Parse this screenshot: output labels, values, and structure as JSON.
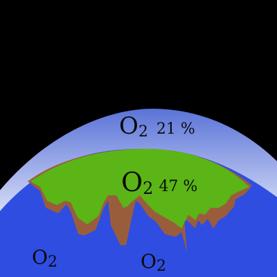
{
  "diagram": {
    "labels": {
      "atmosphere": {
        "formula": "O",
        "subscript": "2",
        "percent": "21 %"
      },
      "crust": {
        "formula": "O",
        "subscript": "2",
        "percent": "47 %"
      },
      "ocean_left": {
        "formula": "O",
        "subscript": "2"
      },
      "ocean_right": {
        "formula": "O",
        "subscript": "2"
      }
    },
    "colors": {
      "space": "#000000",
      "atmosphere_top": "#5a73d8",
      "atmosphere_bottom": "#e9edfb",
      "land": "#5bb516",
      "soil": "#9a5d3c",
      "ocean": "#2f4de0",
      "text": "#0a0a0a"
    }
  }
}
